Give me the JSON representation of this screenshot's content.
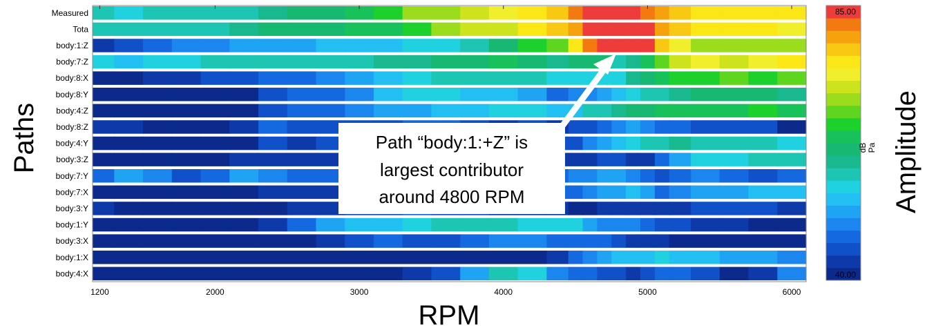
{
  "chart_data": {
    "type": "heatmap",
    "xlabel": "RPM",
    "ylabel": "Paths",
    "colorbar_label": "Amplitude",
    "units": [
      "dB",
      "Pa"
    ],
    "xlim": [
      1150,
      6100
    ],
    "x_ticks": [
      1200,
      2000,
      3000,
      4000,
      5000,
      6000
    ],
    "color_range": [
      40.0,
      85.0
    ],
    "color_range_labels": [
      "40.00",
      "85.00"
    ],
    "colors": [
      "#0b2a8c",
      "#0d3aa8",
      "#1050c8",
      "#1468e0",
      "#1a86ee",
      "#1fa4f4",
      "#22c0f2",
      "#20d2e0",
      "#1cc6b2",
      "#19b98f",
      "#17b871",
      "#16c259",
      "#1dd12d",
      "#5ed51e",
      "#9bdd1c",
      "#cce31e",
      "#f1ee2c",
      "#fbe716",
      "#f8c812",
      "#f5a20c",
      "#f27a10",
      "#ee3c3a"
    ],
    "paths": [
      "Measured",
      "Tota",
      "body:1:Z",
      "body:7:Z",
      "body:8:X",
      "body:8:Y",
      "body:4:Z",
      "body:8:Z",
      "body:4:Y",
      "body:3:Z",
      "body:7:Y",
      "body:7:X",
      "body:3:Y",
      "body:1:Y",
      "body:3:X",
      "body:1:X",
      "body:4:X"
    ],
    "rpm": [
      1200,
      1400,
      1600,
      1800,
      2000,
      2200,
      2400,
      2600,
      2800,
      3000,
      3200,
      3400,
      3600,
      3800,
      4000,
      4200,
      4400,
      4500,
      4600,
      4700,
      4800,
      4900,
      5000,
      5100,
      5200,
      5400,
      5600,
      5800,
      6000
    ],
    "amplitude_db": [
      [
        57,
        56,
        57,
        58,
        57,
        58,
        60,
        61,
        62,
        63,
        66,
        69,
        70,
        71,
        73,
        76,
        78,
        81,
        85,
        85,
        85,
        85,
        82,
        80,
        78,
        76,
        76,
        75,
        76
      ],
      [
        58,
        57,
        57,
        57,
        58,
        60,
        61,
        61,
        62,
        63,
        64,
        66,
        69,
        71,
        72,
        75,
        77,
        80,
        85,
        85,
        85,
        85,
        85,
        80,
        78,
        75,
        76,
        75,
        74
      ],
      [
        44,
        46,
        48,
        49,
        50,
        51,
        52,
        52,
        53,
        53,
        54,
        55,
        56,
        58,
        61,
        65,
        68,
        76,
        81,
        85,
        85,
        85,
        84,
        78,
        74,
        70,
        70,
        69,
        70
      ],
      [
        55,
        54,
        55,
        56,
        57,
        57,
        58,
        58,
        58,
        58,
        59,
        60,
        61,
        62,
        63,
        62,
        60,
        61,
        62,
        61,
        58,
        60,
        63,
        68,
        72,
        73,
        72,
        74,
        76
      ],
      [
        41,
        42,
        43,
        43,
        45,
        46,
        47,
        48,
        50,
        52,
        54,
        56,
        57,
        57,
        58,
        57,
        55,
        55,
        55,
        56,
        55,
        60,
        62,
        64,
        66,
        66,
        67,
        66,
        67
      ],
      [
        41,
        41,
        41,
        42,
        42,
        42,
        45,
        47,
        48,
        50,
        54,
        56,
        55,
        54,
        53,
        52,
        48,
        49,
        50,
        52,
        53,
        55,
        57,
        58,
        60,
        61,
        61,
        62,
        60
      ],
      [
        41,
        41,
        41,
        41,
        41,
        41,
        45,
        47,
        48,
        50,
        51,
        52,
        53,
        54,
        55,
        55,
        53,
        54,
        57,
        58,
        59,
        61,
        62,
        63,
        63,
        64,
        64,
        65,
        64
      ],
      [
        43,
        44,
        42,
        41,
        42,
        44,
        47,
        46,
        45,
        46,
        46,
        48,
        47,
        46,
        44,
        45,
        44,
        45,
        46,
        48,
        50,
        51,
        49,
        48,
        47,
        45,
        45,
        46,
        42
      ],
      [
        42,
        42,
        41,
        41,
        41,
        42,
        45,
        44,
        45,
        47,
        48,
        52,
        54,
        55,
        54,
        48,
        45,
        46,
        50,
        52,
        54,
        56,
        57,
        58,
        59,
        58,
        57,
        58,
        56
      ],
      [
        42,
        42,
        41,
        41,
        42,
        43,
        44,
        43,
        43,
        44,
        44,
        45,
        46,
        47,
        46,
        44,
        43,
        43,
        44,
        45,
        45,
        44,
        43,
        48,
        52,
        55,
        56,
        58,
        57
      ],
      [
        48,
        52,
        50,
        46,
        47,
        51,
        50,
        48,
        47,
        50,
        52,
        54,
        53,
        51,
        49,
        50,
        48,
        49,
        50,
        51,
        51,
        49,
        47,
        46,
        48,
        50,
        47,
        45,
        48
      ],
      [
        41,
        41,
        41,
        41,
        41,
        42,
        44,
        43,
        44,
        46,
        48,
        51,
        50,
        47,
        45,
        46,
        47,
        48,
        49,
        51,
        52,
        53,
        51,
        47,
        49,
        51,
        52,
        53,
        54
      ],
      [
        43,
        42,
        41,
        41,
        41,
        41,
        42,
        43,
        44,
        46,
        46,
        47,
        46,
        45,
        44,
        43,
        43,
        42,
        42,
        43,
        44,
        44,
        43,
        43,
        44,
        45,
        45,
        45,
        44
      ],
      [
        41,
        41,
        41,
        41,
        41,
        41,
        43,
        48,
        51,
        53,
        54,
        55,
        57,
        58,
        58,
        56,
        55,
        55,
        52,
        50,
        49,
        49,
        48,
        46,
        45,
        43,
        44,
        42,
        41
      ],
      [
        41,
        41,
        41,
        41,
        41,
        41,
        41,
        41,
        43,
        45,
        47,
        46,
        45,
        48,
        50,
        49,
        48,
        47,
        47,
        47,
        45,
        44,
        43,
        43,
        42,
        42,
        42,
        41,
        41
      ],
      [
        41,
        41,
        41,
        41,
        41,
        41,
        41,
        41,
        41,
        41,
        41,
        41,
        41,
        41,
        41,
        41,
        44,
        48,
        50,
        52,
        53,
        54,
        54,
        55,
        54,
        53,
        51,
        52,
        50
      ],
      [
        41,
        41,
        41,
        41,
        41,
        41,
        41,
        41,
        41,
        42,
        42,
        44,
        46,
        52,
        57,
        55,
        50,
        48,
        47,
        46,
        45,
        44,
        45,
        47,
        48,
        46,
        42,
        44,
        50
      ]
    ],
    "annotation": {
      "lines": [
        "Path “body:1:+Z” is",
        "largest contributor",
        "around 4800 RPM"
      ],
      "target_path": "body:1:Z",
      "target_rpm": 4800
    }
  }
}
